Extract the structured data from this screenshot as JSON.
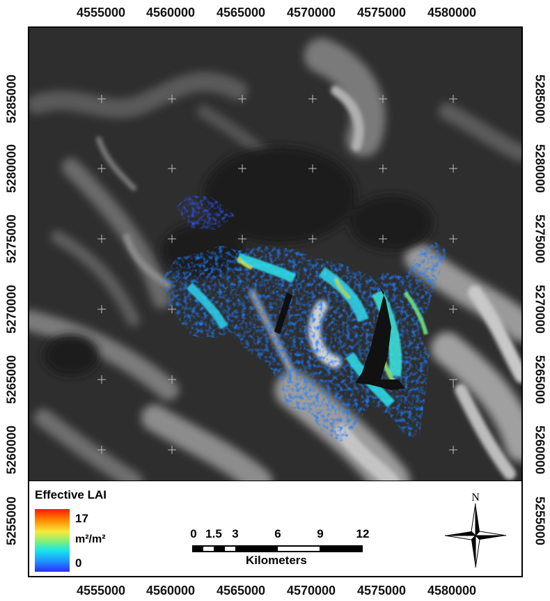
{
  "map": {
    "x_ticks": [
      "4555000",
      "4560000",
      "4565000",
      "4570000",
      "4575000",
      "4580000"
    ],
    "y_ticks": [
      "5285000",
      "5280000",
      "5275000",
      "5270000",
      "5265000",
      "5260000",
      "5255000"
    ]
  },
  "legend": {
    "title": "Effective LAI",
    "max_label": "17",
    "unit": "m²/m²",
    "min_label": "0",
    "ramp_colors": [
      "#ff1a00",
      "#ff8a00",
      "#f7e93a",
      "#7ff07a",
      "#19e5ec",
      "#1e90ff",
      "#2d2dff"
    ]
  },
  "scale_bar": {
    "labels": [
      "0",
      "1.5",
      "3",
      "6",
      "9",
      "12"
    ],
    "unit": "Kilometers"
  },
  "north_arrow": {
    "label": "N"
  }
}
